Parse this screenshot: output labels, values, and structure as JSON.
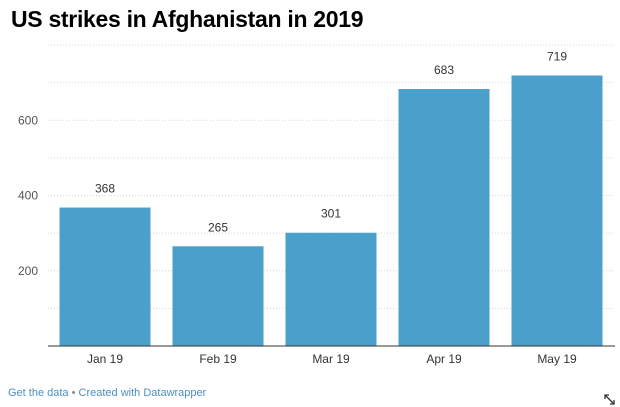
{
  "chart_data": {
    "type": "bar",
    "title": "US strikes in Afghanistan in 2019",
    "xlabel": "",
    "ylabel": "",
    "categories": [
      "Jan 19",
      "Feb 19",
      "Mar 19",
      "Apr 19",
      "May 19"
    ],
    "values": [
      368,
      265,
      301,
      683,
      719
    ],
    "data_labels": [
      "368",
      "265",
      "301",
      "683",
      "719"
    ],
    "ylim": [
      0,
      800
    ],
    "yticks": [
      200,
      400,
      600
    ],
    "grid": true,
    "bar_color": "#4aa0ca"
  },
  "footer": {
    "get_data": "Get the data",
    "separator": "•",
    "created_with": "Created with Datawrapper"
  },
  "icons": {
    "resize": "resize-arrow-icon"
  }
}
